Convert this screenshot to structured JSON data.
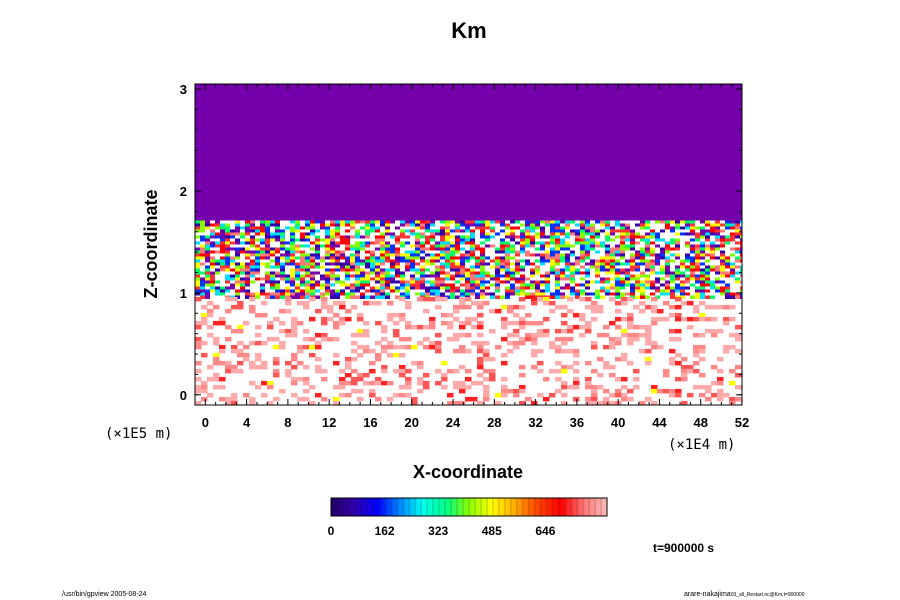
{
  "chart_data": {
    "type": "heatmap",
    "title": "Km",
    "xlabel": "X-coordinate",
    "ylabel": "Z-coordinate",
    "x_scale_label": "(×1E4 m)",
    "y_scale_label": "(×1E5 m)",
    "xlim": [
      -1,
      52
    ],
    "ylim": [
      -0.1,
      3.05
    ],
    "x_ticks": [
      "0",
      "4",
      "8",
      "12",
      "16",
      "20",
      "24",
      "28",
      "32",
      "36",
      "40",
      "44",
      "48",
      "52"
    ],
    "y_ticks": [
      "0",
      "1",
      "2",
      "3"
    ],
    "colorbar": {
      "ticks": [
        "0",
        "162",
        "323",
        "485",
        "646"
      ],
      "stops": [
        "#220066",
        "#3300aa",
        "#0000ff",
        "#0088ff",
        "#00ffee",
        "#00ff88",
        "#88ff00",
        "#ffff00",
        "#ffaa00",
        "#ff4400",
        "#ff0000",
        "#ff7777",
        "#ffbbbb"
      ]
    },
    "regions": [
      {
        "label": "uniform top layer",
        "z_range": [
          1.75,
          3.05
        ],
        "color": "#7300aa"
      },
      {
        "label": "mixed band",
        "z_range": [
          1.0,
          1.75
        ]
      },
      {
        "label": "sparse lower layer",
        "z_range": [
          -0.1,
          1.0
        ]
      }
    ],
    "time_label": "t=900000 s"
  },
  "footer": {
    "left": "/usr/bin/gpview 2005-08-24",
    "right": "arare-nakajima",
    "right_small": "03_all_Restart.nc@Km,t=900000"
  }
}
